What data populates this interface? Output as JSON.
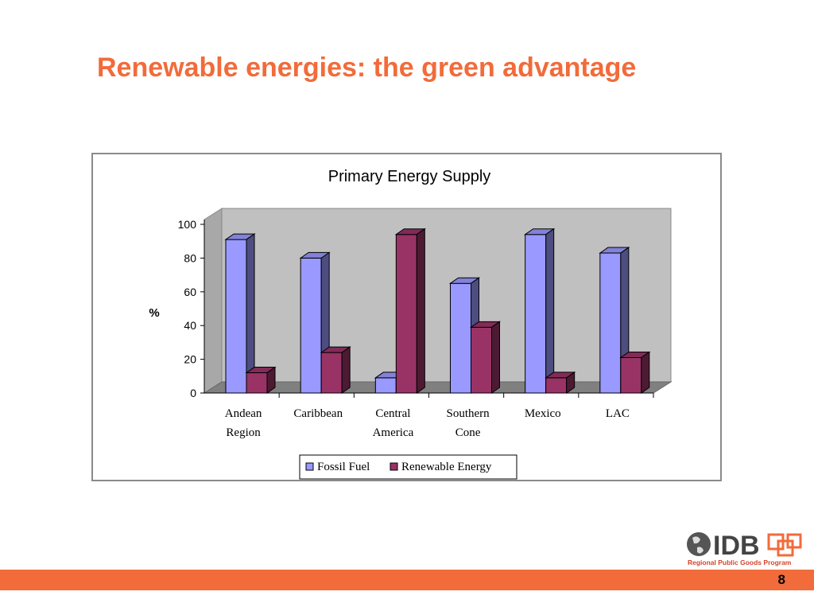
{
  "slide": {
    "title": "Renewable energies: the green advantage",
    "page_number": "8"
  },
  "logo": {
    "text": "IDB",
    "subtitle": "Regional Public Goods Program"
  },
  "colors": {
    "title": "#f26b3a",
    "footer_bar": "#f26b3a",
    "fossil": "#9999ff",
    "renewable": "#993366",
    "plot_back": "#c0c0c0",
    "plot_floor": "#808080"
  },
  "chart_data": {
    "type": "bar",
    "title": "Primary Energy Supply",
    "ylabel": "%",
    "xlabel": "",
    "ylim": [
      0,
      100
    ],
    "yticks": [
      0,
      20,
      40,
      60,
      80,
      100
    ],
    "categories": [
      [
        "Andean",
        "Region"
      ],
      [
        "Caribbean"
      ],
      [
        "Central",
        "America"
      ],
      [
        "Southern",
        "Cone"
      ],
      [
        "Mexico"
      ],
      [
        "LAC"
      ]
    ],
    "series": [
      {
        "name": "Fossil Fuel",
        "values": [
          91,
          80,
          9,
          65,
          94,
          83
        ],
        "color": "#9999ff"
      },
      {
        "name": "Renewable Energy",
        "values": [
          12,
          24,
          94,
          39,
          9,
          21
        ],
        "color": "#993366"
      }
    ],
    "style": "3d-clustered",
    "legend_position": "bottom",
    "grid": false
  }
}
